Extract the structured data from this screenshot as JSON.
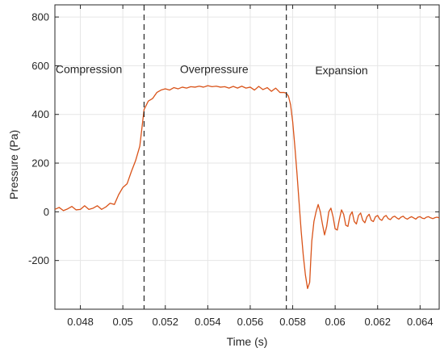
{
  "chart_data": {
    "type": "line",
    "title": "",
    "xlabel": "Time (s)",
    "ylabel": "Pressure (Pa)",
    "xlim": [
      0.0468,
      0.0649
    ],
    "ylim": [
      -400,
      850
    ],
    "grid": true,
    "x_ticks": [
      0.048,
      0.05,
      0.052,
      0.054,
      0.056,
      0.058,
      0.06,
      0.062,
      0.064
    ],
    "x_tick_labels": [
      "0.048",
      "0.05",
      "0.052",
      "0.054",
      "0.056",
      "0.058",
      "0.06",
      "0.062",
      "0.064"
    ],
    "y_ticks": [
      -200,
      0,
      200,
      400,
      600,
      800
    ],
    "y_tick_labels": [
      "-200",
      "0",
      "200",
      "400",
      "600",
      "800"
    ],
    "series_color": "#d95319",
    "series": [
      {
        "x": [
          0.0468,
          0.047,
          0.0472,
          0.0474,
          0.0476,
          0.0478,
          0.048,
          0.0482,
          0.0484,
          0.0486,
          0.0488,
          0.049,
          0.0492,
          0.0494,
          0.0496,
          0.0498,
          0.05,
          0.0502,
          0.0504,
          0.0506,
          0.0508,
          0.051,
          0.0512,
          0.0514,
          0.0516,
          0.0518,
          0.052,
          0.0522,
          0.0524,
          0.0526,
          0.0528,
          0.053,
          0.0532,
          0.0534,
          0.0536,
          0.0538,
          0.054,
          0.0542,
          0.0544,
          0.0546,
          0.0548,
          0.055,
          0.0552,
          0.0554,
          0.0556,
          0.0558,
          0.056,
          0.0562,
          0.0564,
          0.0566,
          0.0568,
          0.057,
          0.0572,
          0.0574,
          0.0576,
          0.0577,
          0.0578,
          0.0579,
          0.058,
          0.0581,
          0.0582,
          0.0583,
          0.0584,
          0.0585,
          0.0586,
          0.0587,
          0.0588,
          0.05885,
          0.0589,
          0.059,
          0.0591,
          0.0592,
          0.0593,
          0.0594,
          0.0595,
          0.0596,
          0.0597,
          0.0598,
          0.0599,
          0.06,
          0.0601,
          0.0602,
          0.0603,
          0.0604,
          0.0605,
          0.0606,
          0.0607,
          0.0608,
          0.0609,
          0.061,
          0.0611,
          0.0612,
          0.0613,
          0.0614,
          0.0615,
          0.0616,
          0.0617,
          0.0618,
          0.0619,
          0.062,
          0.0621,
          0.0622,
          0.0623,
          0.0624,
          0.0625,
          0.0626,
          0.0627,
          0.0628,
          0.0629,
          0.063,
          0.0631,
          0.0632,
          0.0633,
          0.0634,
          0.0635,
          0.0636,
          0.0637,
          0.0638,
          0.0639,
          0.064,
          0.0641,
          0.0642,
          0.0643,
          0.0644,
          0.0645,
          0.0646,
          0.0647,
          0.0648,
          0.0649
        ],
        "y": [
          10,
          18,
          5,
          12,
          22,
          8,
          10,
          25,
          10,
          15,
          25,
          10,
          20,
          35,
          30,
          70,
          100,
          115,
          165,
          210,
          270,
          420,
          455,
          465,
          490,
          500,
          505,
          500,
          510,
          505,
          512,
          508,
          514,
          512,
          516,
          512,
          518,
          514,
          516,
          512,
          514,
          508,
          515,
          508,
          516,
          508,
          512,
          500,
          515,
          502,
          510,
          495,
          508,
          490,
          490,
          487,
          475,
          440,
          370,
          270,
          160,
          40,
          -80,
          -180,
          -260,
          -315,
          -290,
          -200,
          -120,
          -40,
          0,
          30,
          0,
          -50,
          -95,
          -60,
          0,
          15,
          -20,
          -70,
          -75,
          -30,
          8,
          -10,
          -55,
          -60,
          -15,
          0,
          -40,
          -50,
          -15,
          -5,
          -35,
          -45,
          -20,
          -10,
          -35,
          -40,
          -20,
          -15,
          -30,
          -35,
          -20,
          -15,
          -28,
          -32,
          -22,
          -18,
          -25,
          -30,
          -22,
          -18,
          -26,
          -30,
          -24,
          -20,
          -25,
          -30,
          -22,
          -20,
          -26,
          -28,
          -22,
          -20,
          -25,
          -28,
          -24,
          -22,
          -25
        ]
      }
    ],
    "vlines": [
      0.051,
      0.0577
    ],
    "annotations": [
      {
        "text": "Compression",
        "x": 0.0484,
        "y": 570
      },
      {
        "text": "Overpressure",
        "x": 0.0543,
        "y": 570
      },
      {
        "text": "Expansion",
        "x": 0.0603,
        "y": 565
      }
    ]
  }
}
